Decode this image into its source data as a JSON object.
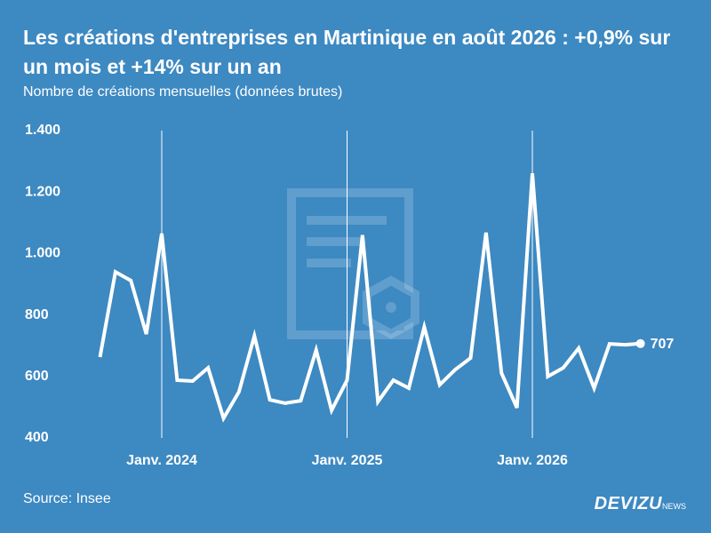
{
  "chart_data": {
    "type": "line",
    "title": "Les créations d'entreprises en Martinique en août 2026 : +0,9% sur un mois et +14% sur un an",
    "subtitle": "Nombre de créations mensuelles (données brutes)",
    "source": "Source: Insee",
    "brand": "DEVIZU",
    "brand_suffix": "NEWS",
    "categories": [
      null,
      null,
      null,
      null,
      "Janv. 2024",
      null,
      null,
      null,
      null,
      null,
      null,
      null,
      null,
      null,
      null,
      null,
      "Janv. 2025",
      null,
      null,
      null,
      null,
      null,
      null,
      null,
      null,
      null,
      null,
      null,
      "Janv. 2026",
      null,
      null,
      null,
      null,
      null,
      null,
      null
    ],
    "series": [
      {
        "name": "Créations",
        "color": "#ffffff",
        "values": [
          663,
          940,
          912,
          738,
          1065,
          588,
          585,
          628,
          464,
          550,
          732,
          524,
          513,
          521,
          686,
          490,
          588,
          1060,
          518,
          588,
          562,
          761,
          573,
          622,
          660,
          1068,
          611,
          498,
          1261,
          600,
          628,
          692,
          562,
          706,
          703,
          707
        ]
      }
    ],
    "ylim": [
      400,
      1400
    ],
    "yticks": [
      {
        "value": 1400,
        "label": "1.400"
      },
      {
        "value": 1200,
        "label": "1.200"
      },
      {
        "value": 1000,
        "label": "1.000"
      },
      800,
      600,
      400
    ],
    "background": "#3d89c2"
  }
}
